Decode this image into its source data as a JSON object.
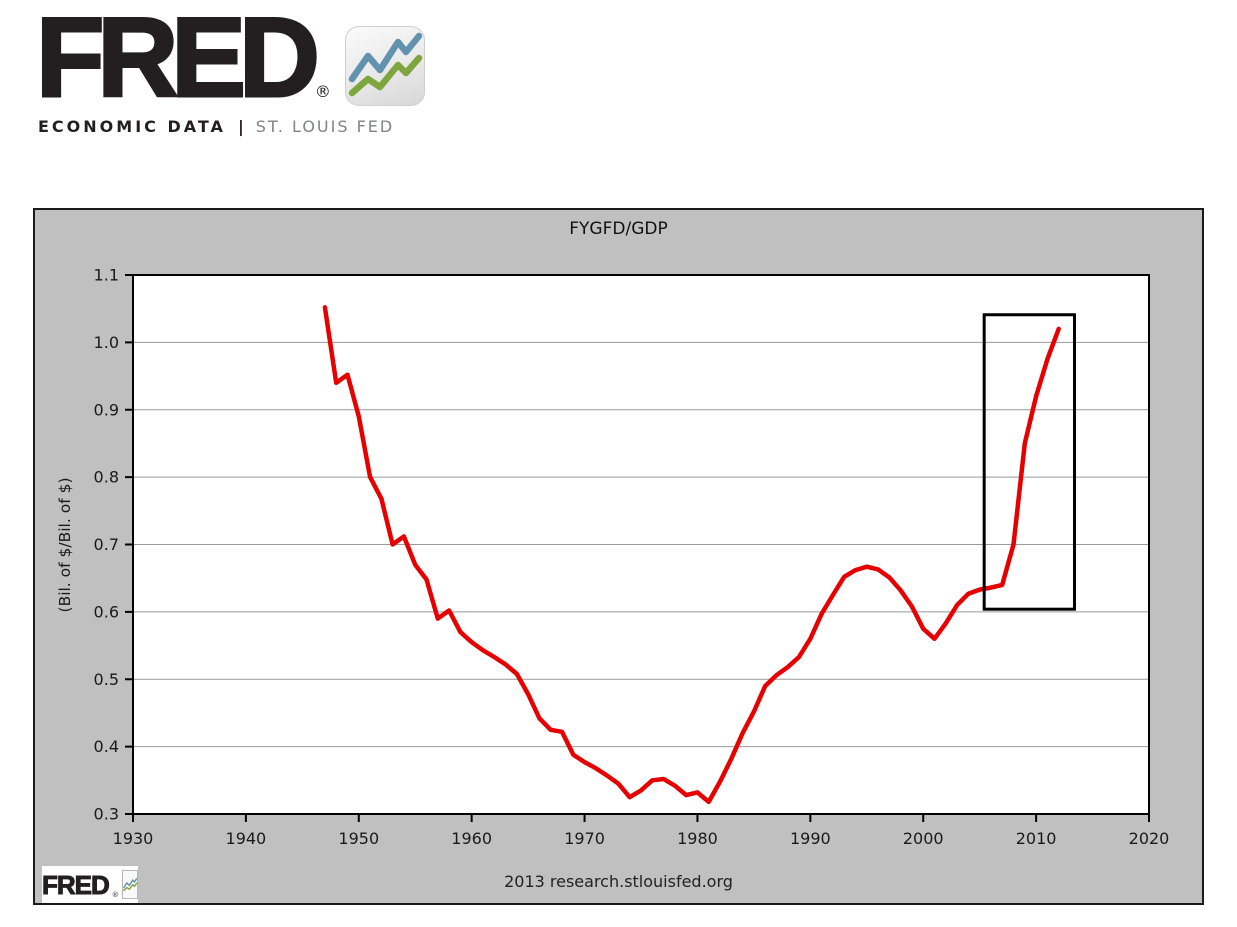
{
  "header": {
    "brand": "FRED",
    "registered": "®",
    "tagline_left": "ECONOMIC DATA",
    "tagline_sep": "|",
    "tagline_right": "ST. LOUIS FED"
  },
  "brand": {
    "logo_blue": "#6292ad",
    "logo_green": "#7fa53f"
  },
  "chart": {
    "title": "FYGFD/GDP",
    "ylabel": "(Bil. of $/Bil. of $)",
    "footer_brand": "FRED",
    "footer_registered": "®",
    "footer_note": "2013 research.stlouisfed.org",
    "colors": {
      "background": "#c0c0c0",
      "plot_background": "#ffffff",
      "grid": "#999999",
      "frame": "#000000",
      "tick_text": "#1a1a1a",
      "line": "#e60000",
      "annotation": "#000000"
    }
  },
  "chart_data": {
    "type": "line",
    "title": "FYGFD/GDP",
    "xlabel": "",
    "ylabel": "(Bil. of $/Bil. of $)",
    "xlim": [
      1930,
      2020
    ],
    "ylim": [
      0.3,
      1.1
    ],
    "x_ticks": [
      1930,
      1940,
      1950,
      1960,
      1970,
      1980,
      1990,
      2000,
      2010,
      2020
    ],
    "y_ticks": [
      1.1,
      1.0,
      0.9,
      0.8,
      0.7,
      0.6,
      0.5,
      0.4,
      0.3
    ],
    "y_tick_decimals": 1,
    "grid": true,
    "legend_position": "none",
    "line_color": "#e60000",
    "series": [
      {
        "name": "FYGFD/GDP",
        "x": [
          1947,
          1948,
          1949,
          1950,
          1951,
          1952,
          1953,
          1954,
          1955,
          1956,
          1957,
          1958,
          1959,
          1960,
          1961,
          1962,
          1963,
          1964,
          1965,
          1966,
          1967,
          1968,
          1969,
          1970,
          1971,
          1972,
          1973,
          1974,
          1975,
          1976,
          1977,
          1978,
          1979,
          1980,
          1981,
          1982,
          1983,
          1984,
          1985,
          1986,
          1987,
          1988,
          1989,
          1990,
          1991,
          1992,
          1993,
          1994,
          1995,
          1996,
          1997,
          1998,
          1999,
          2000,
          2001,
          2002,
          2003,
          2004,
          2005,
          2006,
          2007,
          2008,
          2009,
          2010,
          2011,
          2012
        ],
        "y": [
          1.052,
          0.94,
          0.952,
          0.89,
          0.8,
          0.768,
          0.7,
          0.712,
          0.67,
          0.648,
          0.59,
          0.602,
          0.57,
          0.555,
          0.543,
          0.533,
          0.522,
          0.508,
          0.478,
          0.442,
          0.425,
          0.422,
          0.388,
          0.377,
          0.368,
          0.357,
          0.345,
          0.325,
          0.335,
          0.35,
          0.352,
          0.342,
          0.328,
          0.332,
          0.318,
          0.348,
          0.382,
          0.42,
          0.452,
          0.49,
          0.506,
          0.518,
          0.533,
          0.56,
          0.597,
          0.625,
          0.652,
          0.662,
          0.667,
          0.663,
          0.651,
          0.632,
          0.608,
          0.575,
          0.56,
          0.583,
          0.61,
          0.627,
          0.633,
          0.636,
          0.64,
          0.7,
          0.85,
          0.92,
          0.975,
          1.02
        ]
      }
    ],
    "annotation_box": {
      "x": [
        2005.4,
        2013.4
      ],
      "y": [
        0.604,
        1.041
      ],
      "color": "#000000"
    },
    "source_note": "2013 research.stlouisfed.org"
  }
}
